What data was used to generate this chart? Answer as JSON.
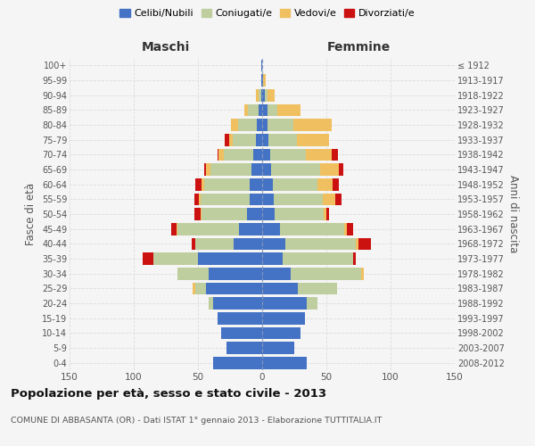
{
  "age_groups": [
    "0-4",
    "5-9",
    "10-14",
    "15-19",
    "20-24",
    "25-29",
    "30-34",
    "35-39",
    "40-44",
    "45-49",
    "50-54",
    "55-59",
    "60-64",
    "65-69",
    "70-74",
    "75-79",
    "80-84",
    "85-89",
    "90-94",
    "95-99",
    "100+"
  ],
  "birth_years": [
    "2008-2012",
    "2003-2007",
    "1998-2002",
    "1993-1997",
    "1988-1992",
    "1983-1987",
    "1978-1982",
    "1973-1977",
    "1968-1972",
    "1963-1967",
    "1958-1962",
    "1953-1957",
    "1948-1952",
    "1943-1947",
    "1938-1942",
    "1933-1937",
    "1928-1932",
    "1923-1927",
    "1918-1922",
    "1913-1917",
    "≤ 1912"
  ],
  "male": {
    "celibi": [
      38,
      28,
      32,
      35,
      38,
      44,
      42,
      50,
      22,
      18,
      12,
      10,
      10,
      8,
      7,
      5,
      4,
      3,
      1,
      1,
      1
    ],
    "coniugati": [
      0,
      0,
      0,
      0,
      4,
      8,
      24,
      35,
      30,
      48,
      35,
      38,
      35,
      32,
      23,
      18,
      15,
      8,
      2,
      0,
      0
    ],
    "vedovi": [
      0,
      0,
      0,
      0,
      0,
      2,
      0,
      0,
      0,
      1,
      1,
      1,
      2,
      4,
      4,
      3,
      5,
      3,
      2,
      0,
      0
    ],
    "divorziati": [
      0,
      0,
      0,
      0,
      0,
      0,
      0,
      8,
      3,
      4,
      5,
      4,
      5,
      1,
      1,
      3,
      0,
      0,
      0,
      0,
      0
    ]
  },
  "female": {
    "nubili": [
      35,
      25,
      30,
      33,
      35,
      28,
      22,
      16,
      18,
      14,
      10,
      9,
      8,
      7,
      6,
      5,
      4,
      4,
      2,
      1,
      0
    ],
    "coniugate": [
      0,
      0,
      0,
      0,
      8,
      30,
      55,
      55,
      55,
      50,
      38,
      38,
      35,
      38,
      28,
      22,
      20,
      8,
      2,
      0,
      0
    ],
    "vedove": [
      0,
      0,
      0,
      0,
      0,
      0,
      2,
      0,
      2,
      2,
      2,
      10,
      12,
      15,
      20,
      25,
      30,
      18,
      6,
      2,
      0
    ],
    "divorziate": [
      0,
      0,
      0,
      0,
      0,
      0,
      0,
      2,
      10,
      5,
      2,
      5,
      5,
      3,
      5,
      0,
      0,
      0,
      0,
      0,
      0
    ]
  },
  "colors": {
    "celibi": "#4472C4",
    "coniugati": "#BFCE9E",
    "vedovi": "#F0C060",
    "divorziati": "#CC1111"
  },
  "title": "Popolazione per età, sesso e stato civile - 2013",
  "subtitle": "COMUNE DI ABBASANTA (OR) - Dati ISTAT 1° gennaio 2013 - Elaborazione TUTTITALIA.IT",
  "xlabel_left": "Maschi",
  "xlabel_right": "Femmine",
  "ylabel_left": "Fasce di età",
  "ylabel_right": "Anni di nascita",
  "xlim": 150,
  "legend_labels": [
    "Celibi/Nubili",
    "Coniugati/e",
    "Vedovi/e",
    "Divorziati/e"
  ],
  "bg_color": "#f5f5f5",
  "plot_bg": "#f5f5f5",
  "grid_color": "#dddddd"
}
